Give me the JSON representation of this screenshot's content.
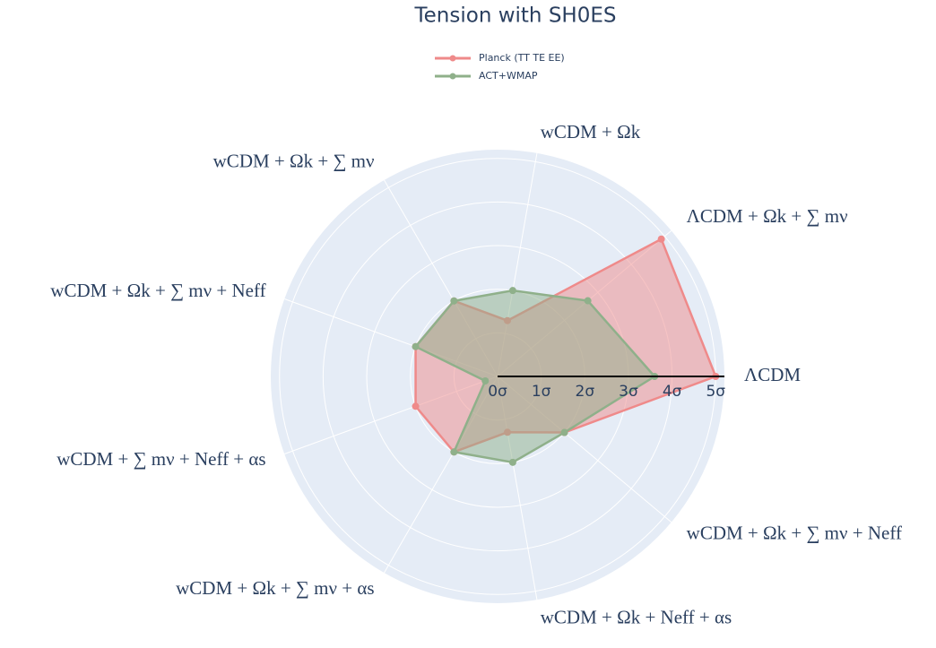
{
  "chart_data": {
    "type": "radar",
    "title": "Tension with SH0ES",
    "categories": [
      "ΛCDM",
      "ΛCDM + Ωk + ∑ mν",
      "wCDM + Ωk",
      "wCDM + Ωk + ∑ mν",
      "wCDM + Ωk + ∑ mν + Neff",
      "wCDM + ∑ mν + Neff + αs",
      "wCDM + Ωk + ∑ mν + αs",
      "wCDM + Ωk + Neff + αs",
      "wCDM + Ωk + ∑ mν + Neff"
    ],
    "series": [
      {
        "name": "Planck (TT TE EE)",
        "color": "#ef8a8a",
        "values": [
          5.0,
          4.9,
          1.3,
          2.0,
          2.0,
          2.0,
          2.0,
          1.3,
          2.0
        ]
      },
      {
        "name": "ACT+WMAP",
        "color": "#8fb08a",
        "values": [
          3.6,
          2.7,
          2.0,
          2.0,
          2.0,
          0.3,
          2.0,
          2.0,
          2.0
        ]
      }
    ],
    "rlim": [
      0,
      5.2
    ],
    "rticks": [
      {
        "value": 0,
        "label": "0σ"
      },
      {
        "value": 1,
        "label": "1σ"
      },
      {
        "value": 2,
        "label": "2σ"
      },
      {
        "value": 3,
        "label": "3σ"
      },
      {
        "value": 4,
        "label": "4σ"
      },
      {
        "value": 5,
        "label": "5σ"
      }
    ],
    "grid": true
  }
}
